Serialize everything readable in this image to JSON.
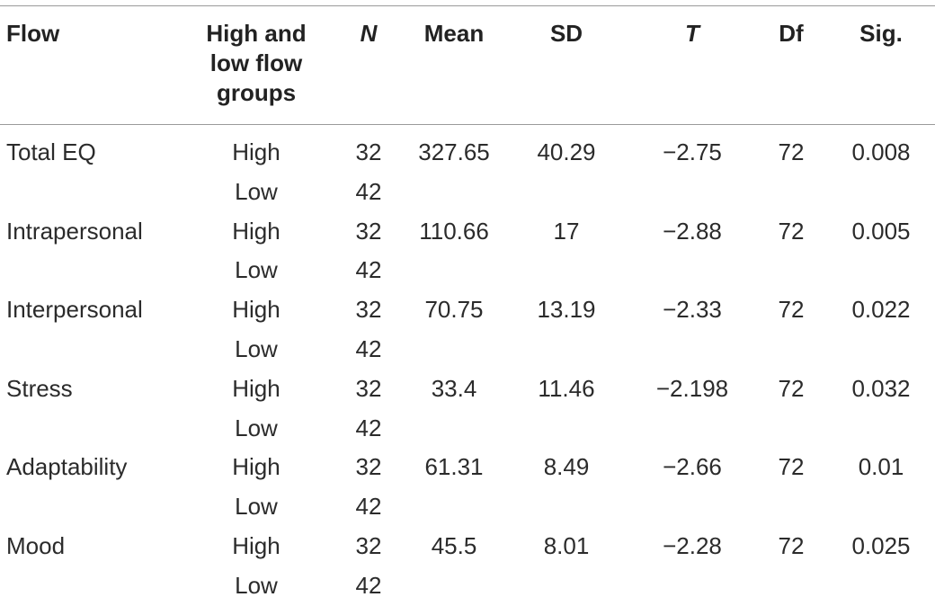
{
  "headers": {
    "flow": "Flow",
    "group": "High and low flow groups",
    "group_lines": [
      "High and",
      "low flow",
      "groups"
    ],
    "n": "N",
    "mean": "Mean",
    "sd": "SD",
    "t": "T",
    "df": "Df",
    "sig": "Sig."
  },
  "rows": [
    {
      "flow": "Total EQ",
      "group": "High",
      "n": "32",
      "mean": "327.65",
      "sd": "40.29",
      "t": "−2.75",
      "df": "72",
      "sig": "0.008"
    },
    {
      "flow": "",
      "group": "Low",
      "n": "42",
      "mean": "",
      "sd": "",
      "t": "",
      "df": "",
      "sig": ""
    },
    {
      "flow": "Intrapersonal",
      "group": "High",
      "n": "32",
      "mean": "110.66",
      "sd": "17",
      "t": "−2.88",
      "df": "72",
      "sig": "0.005"
    },
    {
      "flow": "",
      "group": "Low",
      "n": "42",
      "mean": "",
      "sd": "",
      "t": "",
      "df": "",
      "sig": ""
    },
    {
      "flow": "Interpersonal",
      "group": "High",
      "n": "32",
      "mean": "70.75",
      "sd": "13.19",
      "t": "−2.33",
      "df": "72",
      "sig": "0.022"
    },
    {
      "flow": "",
      "group": "Low",
      "n": "42",
      "mean": "",
      "sd": "",
      "t": "",
      "df": "",
      "sig": ""
    },
    {
      "flow": "Stress",
      "group": "High",
      "n": "32",
      "mean": "33.4",
      "sd": "11.46",
      "t": "−2.198",
      "df": "72",
      "sig": "0.032"
    },
    {
      "flow": "",
      "group": "Low",
      "n": "42",
      "mean": "",
      "sd": "",
      "t": "",
      "df": "",
      "sig": ""
    },
    {
      "flow": "Adaptability",
      "group": "High",
      "n": "32",
      "mean": "61.31",
      "sd": "8.49",
      "t": "−2.66",
      "df": "72",
      "sig": "0.01"
    },
    {
      "flow": "",
      "group": "Low",
      "n": "42",
      "mean": "",
      "sd": "",
      "t": "",
      "df": "",
      "sig": ""
    },
    {
      "flow": "Mood",
      "group": "High",
      "n": "32",
      "mean": "45.5",
      "sd": "8.01",
      "t": "−2.28",
      "df": "72",
      "sig": "0.025"
    },
    {
      "flow": "",
      "group": "Low",
      "n": "42",
      "mean": "",
      "sd": "",
      "t": "",
      "df": "",
      "sig": ""
    }
  ]
}
